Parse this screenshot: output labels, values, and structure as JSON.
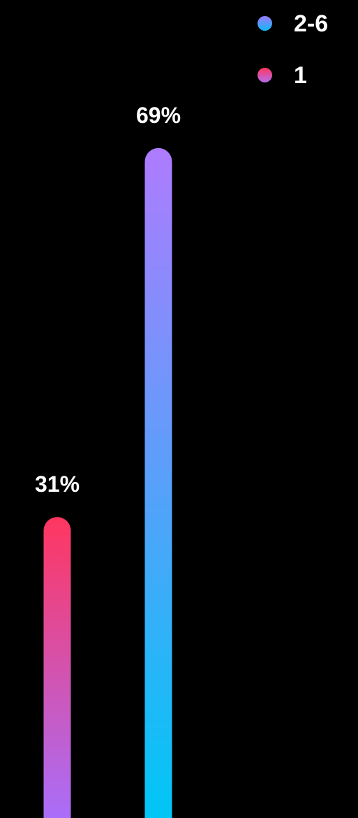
{
  "chart_data": {
    "type": "bar",
    "categories": [
      "1",
      "2-6"
    ],
    "values": [
      31,
      69
    ],
    "value_labels": [
      "31%",
      "69%"
    ],
    "legend": {
      "placement": "top-right",
      "entries": [
        {
          "label": "2-6",
          "color_top": "#9b7bff",
          "color_bottom": "#0fb8f5"
        },
        {
          "label": "1",
          "color_top": "#ff3660",
          "color_bottom": "#b56eee"
        }
      ]
    },
    "series_colors": [
      {
        "category": "1",
        "top": "#ff3660",
        "bottom": "#a96ef9"
      },
      {
        "category": "2-6",
        "top": "#ae7bff",
        "bottom": "#00c6f5"
      }
    ],
    "ylim": [
      0,
      100
    ],
    "grid": false,
    "title": "",
    "xlabel": "",
    "ylabel": ""
  },
  "background": "#000000"
}
